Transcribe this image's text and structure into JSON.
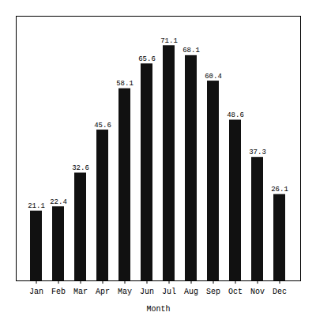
{
  "chart_data": {
    "type": "bar",
    "xlabel": "Month",
    "categories": [
      "Jan",
      "Feb",
      "Mar",
      "Apr",
      "May",
      "Jun",
      "Jul",
      "Aug",
      "Sep",
      "Oct",
      "Nov",
      "Dec"
    ],
    "values": [
      21.1,
      22.4,
      32.6,
      45.6,
      58.1,
      65.6,
      71.1,
      68.1,
      60.4,
      48.6,
      37.3,
      26.1
    ],
    "color": "#111111",
    "ylim": [
      0,
      80
    ],
    "data_labels": true,
    "tick_labels": "x",
    "grid": false
  }
}
